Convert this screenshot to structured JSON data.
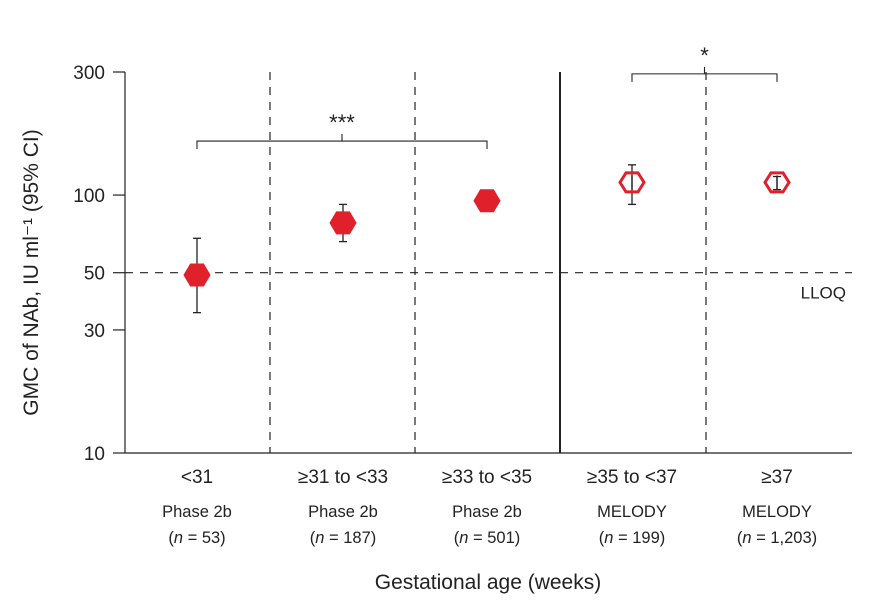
{
  "chart_data": {
    "type": "scatter",
    "xlabel": "Gestational age (weeks)",
    "ylabel": "GMC of NAb, IU ml⁻¹ (95% CI)",
    "yscale": "log",
    "ylim": [
      10,
      300
    ],
    "yticks": [
      10,
      30,
      50,
      100,
      300
    ],
    "grid": false,
    "reference_line": {
      "value": 50,
      "label": "LLOQ"
    },
    "categories": [
      {
        "label": "<31",
        "group": "Phase 2b",
        "n": "53"
      },
      {
        "label": "≥31 to <33",
        "group": "Phase 2b",
        "n": "187"
      },
      {
        "label": "≥33 to <35",
        "group": "Phase 2b",
        "n": "501"
      },
      {
        "label": "≥35 to <37",
        "group": "MELODY",
        "n": "199"
      },
      {
        "label": "≥37",
        "group": "MELODY",
        "n": "1,203"
      }
    ],
    "series": [
      {
        "name": "GMC",
        "values": [
          49,
          78,
          95,
          112,
          112
        ],
        "ci_low": [
          35,
          66,
          87,
          92,
          105
        ],
        "ci_high": [
          68,
          92,
          103,
          131,
          118
        ],
        "filled": [
          true,
          true,
          true,
          false,
          false
        ]
      }
    ],
    "comparisons": [
      {
        "from": 0,
        "to": 2,
        "label": "***",
        "level": 162
      },
      {
        "from": 3,
        "to": 4,
        "label": "*",
        "level": 295
      }
    ],
    "colors": {
      "marker": "#e0202b",
      "axis": "#222222"
    }
  }
}
